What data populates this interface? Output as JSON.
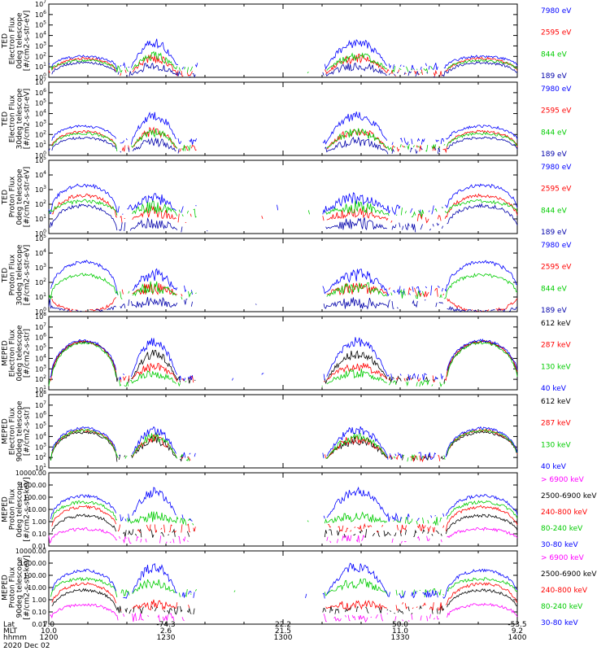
{
  "chart_data": {
    "type": "line",
    "date": "2020 Dec 02",
    "x_axis": {
      "rows": [
        {
          "label": "Lat",
          "values": [
            "7.0",
            "-74.3",
            "22.2",
            "50.0",
            "-53.5"
          ]
        },
        {
          "label": "MLT",
          "values": [
            "10.0",
            "2.6",
            "21.5",
            "11.0",
            "9.2"
          ]
        },
        {
          "label": "hhmm",
          "values": [
            "1200",
            "1230",
            "1300",
            "1330",
            "1400"
          ]
        }
      ],
      "time_range_min": [
        0,
        60
      ]
    },
    "panels": [
      {
        "ylabel": [
          "TED",
          "Electron Flux",
          "0deg telescope",
          "[#/cm2-s-str-eV]"
        ],
        "scale": "log",
        "ylim": [
          0,
          7
        ],
        "tick_labels": [
          "10^0",
          "10^1",
          "10^2",
          "10^3",
          "10^4",
          "10^5",
          "10^6",
          "10^7"
        ],
        "series": [
          {
            "name": "7980 eV",
            "color": "#0000ff",
            "level": 2.0,
            "arc": 1.3,
            "burst": 2.4,
            "floor": 0.9
          },
          {
            "name": "2595 eV",
            "color": "#ff0000",
            "level": 1.8,
            "arc": 1.0,
            "burst": 1.5,
            "floor": 0.3
          },
          {
            "name": "844 eV",
            "color": "#00cc00",
            "level": 1.6,
            "arc": 0.9,
            "burst": 1.4,
            "floor": 0.6
          },
          {
            "name": "189 eV",
            "color": "#0000aa",
            "level": 1.4,
            "arc": 0.8,
            "burst": 1.0,
            "floor": 0.1
          }
        ]
      },
      {
        "ylabel": [
          "TED",
          "Electron Flux",
          "30deg telescope",
          "[#/cm2-s-str-eV]"
        ],
        "scale": "log",
        "ylim": [
          0,
          7
        ],
        "tick_labels": [
          "10^0",
          "10^1",
          "10^2",
          "10^3",
          "10^4",
          "10^5",
          "10^6",
          "10^7"
        ],
        "series": [
          {
            "name": "7980 eV",
            "color": "#0000ff",
            "level": 2.8,
            "arc": 1.5,
            "burst": 2.6,
            "floor": 1.2
          },
          {
            "name": "2595 eV",
            "color": "#ff0000",
            "level": 2.3,
            "arc": 1.2,
            "burst": 1.8,
            "floor": 0.5
          },
          {
            "name": "844 eV",
            "color": "#00cc00",
            "level": 2.1,
            "arc": 1.1,
            "burst": 1.6,
            "floor": 0.6
          },
          {
            "name": "189 eV",
            "color": "#0000aa",
            "level": 1.7,
            "arc": 0.9,
            "burst": 1.0,
            "floor": 0.3
          }
        ]
      },
      {
        "ylabel": [
          "TED",
          "Proton Flux",
          "0deg telescope",
          "[#/cm2-s-str-eV]"
        ],
        "scale": "log",
        "ylim": [
          0,
          5
        ],
        "tick_labels": [
          "10^0",
          "10^1",
          "10^2",
          "10^3",
          "10^4",
          "10^5"
        ],
        "series": [
          {
            "name": "7980 eV",
            "color": "#0000ff",
            "level": 3.3,
            "arc": 0.6,
            "burst": 0.9,
            "floor": 1.5
          },
          {
            "name": "2595 eV",
            "color": "#ff0000",
            "level": 2.6,
            "arc": 0.7,
            "burst": 0.6,
            "floor": 0.9
          },
          {
            "name": "844 eV",
            "color": "#00cc00",
            "level": 2.2,
            "arc": 0.8,
            "burst": 0.5,
            "floor": 1.3
          },
          {
            "name": "189 eV",
            "color": "#0000aa",
            "level": 1.9,
            "arc": 0.7,
            "burst": 0.4,
            "floor": 0.3
          }
        ]
      },
      {
        "ylabel": [
          "TED",
          "Proton Flux",
          "30deg telescope",
          "[#/cm2-s-str-eV]"
        ],
        "scale": "log",
        "ylim": [
          0,
          5
        ],
        "tick_labels": [
          "10^0",
          "10^1",
          "10^2",
          "10^3",
          "10^4",
          "10^5"
        ],
        "series": [
          {
            "name": "7980 eV",
            "color": "#0000ff",
            "level": 3.4,
            "arc": 0.6,
            "burst": 1.2,
            "floor": 1.3
          },
          {
            "name": "2595 eV",
            "color": "#ff0000",
            "level": 0.0,
            "arc": 0.0,
            "burst": 0.4,
            "floor": 1.2
          },
          {
            "name": "844 eV",
            "color": "#00cc00",
            "level": 2.5,
            "arc": 0.5,
            "burst": 0.7,
            "floor": 1.0
          },
          {
            "name": "189 eV",
            "color": "#0000aa",
            "level": 0.0,
            "arc": 0.0,
            "burst": 0.2,
            "floor": 0.4
          }
        ]
      },
      {
        "ylabel": [
          "MEPED",
          "Electron Flux",
          "0deg telescope",
          "[#/cm2-s-str]"
        ],
        "scale": "log",
        "ylim": [
          1,
          8
        ],
        "tick_labels": [
          "10^1",
          "10^2",
          "10^3",
          "10^4",
          "10^5",
          "10^6",
          "10^7",
          "10^8"
        ],
        "series": [
          {
            "name": "612 keV",
            "color": "#000000",
            "level": 5.6,
            "arc": 3.6,
            "burst": 2.6,
            "floor": 1.8
          },
          {
            "name": "287 keV",
            "color": "#ff0000",
            "level": 5.6,
            "arc": 3.5,
            "burst": 1.3,
            "floor": 1.9
          },
          {
            "name": "130 keV",
            "color": "#00cc00",
            "level": 5.5,
            "arc": 3.4,
            "burst": 1.1,
            "floor": 1.5
          },
          {
            "name": "40 keV",
            "color": "#0000ff",
            "level": 5.7,
            "arc": 3.3,
            "burst": 3.5,
            "floor": 2.1
          }
        ]
      },
      {
        "ylabel": [
          "MEPED",
          "Electron Flux",
          "90deg telescope",
          "[#/cm2-s-str]"
        ],
        "scale": "log",
        "ylim": [
          1,
          8
        ],
        "tick_labels": [
          "10^1",
          "10^2",
          "10^3",
          "10^4",
          "10^5",
          "10^6",
          "10^7",
          "10^8"
        ],
        "series": [
          {
            "name": "612 keV",
            "color": "#000000",
            "level": 4.4,
            "arc": 2.4,
            "burst": 1.8,
            "floor": 1.8
          },
          {
            "name": "287 keV",
            "color": "#ff0000",
            "level": 4.6,
            "arc": 2.6,
            "burst": 2.0,
            "floor": 1.8
          },
          {
            "name": "130 keV",
            "color": "#00cc00",
            "level": 4.6,
            "arc": 2.6,
            "burst": 2.2,
            "floor": 1.8
          },
          {
            "name": "40 keV",
            "color": "#0000ff",
            "level": 4.8,
            "arc": 2.8,
            "burst": 2.6,
            "floor": 2.0
          }
        ]
      },
      {
        "ylabel": [
          "MEPED",
          "Proton Flux",
          "0deg telescope",
          "[#/cm2-s-str-keV]"
        ],
        "scale": "log",
        "ylim": [
          -2,
          4
        ],
        "tick_labels": [
          "0.01",
          "0.10",
          "1.00",
          "10.00",
          "100.00",
          "1000.00",
          "10000.00"
        ],
        "series": [
          {
            "name": "> 6900 keV",
            "color": "#ff00ff",
            "level": -0.6,
            "arc": 0.6,
            "burst": 0.0,
            "floor": -1.6
          },
          {
            "name": "2500-6900 keV",
            "color": "#000000",
            "level": 0.5,
            "arc": 1.4,
            "burst": 0.0,
            "floor": -1.1
          },
          {
            "name": "240-800 keV",
            "color": "#ff0000",
            "level": 1.2,
            "arc": 1.6,
            "burst": 0.0,
            "floor": -0.7
          },
          {
            "name": "80-240 keV",
            "color": "#00cc00",
            "level": 1.6,
            "arc": 1.6,
            "burst": 0.5,
            "floor": -0.1
          },
          {
            "name": "30-80 keV",
            "color": "#0000ff",
            "level": 2.1,
            "arc": 1.7,
            "burst": 2.2,
            "floor": 0.2
          }
        ]
      },
      {
        "ylabel": [
          "MEPED",
          "Proton Flux",
          "90deg telescope",
          "[#/cm2-s-str-keV]"
        ],
        "scale": "log",
        "ylim": [
          -2,
          4
        ],
        "tick_labels": [
          "0.01",
          "0.10",
          "1.00",
          "10.00",
          "100.00",
          "1000.00",
          "10000.00"
        ],
        "series": [
          {
            "name": "> 6900 keV",
            "color": "#ff00ff",
            "level": -0.4,
            "arc": 0.6,
            "burst": 0.0,
            "floor": -1.6
          },
          {
            "name": "2500-6900 keV",
            "color": "#000000",
            "level": 0.8,
            "arc": 1.4,
            "burst": 0.0,
            "floor": -1.0
          },
          {
            "name": "240-800 keV",
            "color": "#ff0000",
            "level": 1.3,
            "arc": 1.6,
            "burst": 0.3,
            "floor": -0.7
          },
          {
            "name": "80-240 keV",
            "color": "#00cc00",
            "level": 1.7,
            "arc": 1.6,
            "burst": 1.0,
            "floor": 0.4
          },
          {
            "name": "30-80 keV",
            "color": "#0000ff",
            "level": 2.4,
            "arc": 1.8,
            "burst": 2.4,
            "floor": 0.3
          }
        ]
      }
    ]
  }
}
